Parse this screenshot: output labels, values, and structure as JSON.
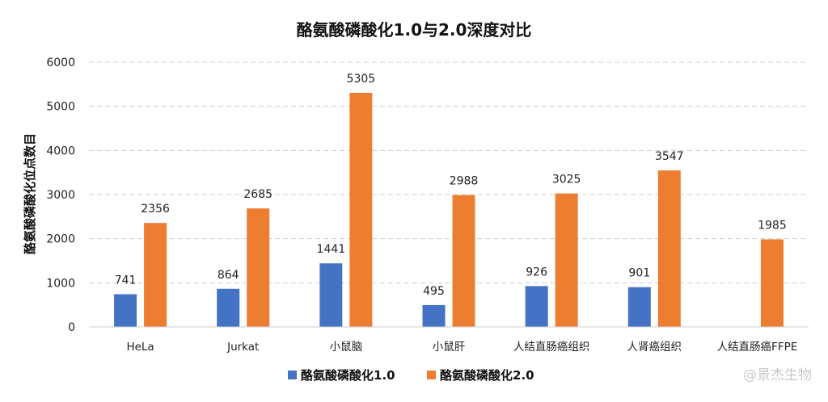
{
  "chart_data": {
    "type": "bar",
    "title": "酪氨酸磷酸化1.0与2.0深度对比",
    "ylabel": "酪氨酸磷酸化位点数目",
    "xlabel": "",
    "ylim": [
      0,
      6000
    ],
    "yticks": [
      0,
      1000,
      2000,
      3000,
      4000,
      5000,
      6000
    ],
    "grid": true,
    "legend_position": "bottom",
    "categories": [
      "HeLa",
      "Jurkat",
      "小鼠脑",
      "小鼠肝",
      "人结直肠癌组织",
      "人肾癌组织",
      "人结直肠癌FFPE"
    ],
    "series": [
      {
        "name": "酪氨酸磷酸化1.0",
        "color": "#4472C4",
        "values": [
          741,
          864,
          1441,
          495,
          926,
          901,
          null
        ]
      },
      {
        "name": "酪氨酸磷酸化2.0",
        "color": "#ED7D31",
        "values": [
          2356,
          2685,
          5305,
          2988,
          3025,
          3547,
          1985
        ]
      }
    ]
  },
  "watermark": "@景杰生物"
}
